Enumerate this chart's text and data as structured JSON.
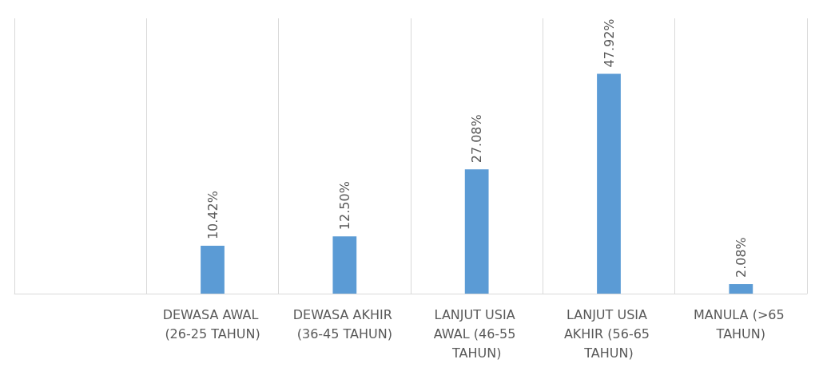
{
  "chart_data": {
    "type": "bar",
    "categories": [
      null,
      "DEWASA AWAL (26-25 TAHUN)",
      "DEWASA AKHIR (36-45 TAHUN)",
      "LANJUT USIA AWAL (46-55 TAHUN)",
      "LANJUT USIA AKHIR (56-65 TAHUN)",
      "MANULA (>65 TAHUN)"
    ],
    "values": [
      null,
      10.42,
      12.5,
      27.08,
      47.92,
      2.08
    ],
    "value_labels": [
      null,
      "10.42%",
      "12.50%",
      "27.08%",
      "47.92%",
      "2.08%"
    ],
    "color": "#5b9bd5",
    "ylim": [
      0,
      60
    ],
    "grid": "x",
    "tick_labels": "x"
  }
}
